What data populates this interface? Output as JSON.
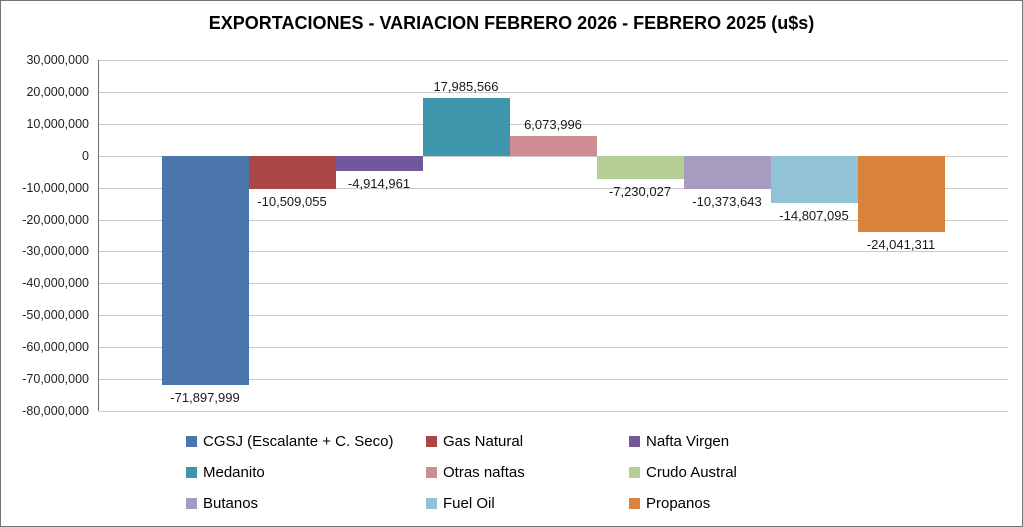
{
  "chart_data": {
    "type": "bar",
    "title": "EXPORTACIONES - VARIACION FEBRERO 2026 - FEBRERO 2025 (u$s)",
    "series": [
      {
        "name": "CGSJ (Escalante + C. Seco)",
        "value": -71897999,
        "label": "-71,897,999",
        "color": "#4A76AB"
      },
      {
        "name": "Gas Natural",
        "value": -10509055,
        "label": "-10,509,055",
        "color": "#AA4744"
      },
      {
        "name": "Nafta Virgen",
        "value": -4914961,
        "label": "-4,914,961",
        "color": "#72589B"
      },
      {
        "name": "Medanito",
        "value": 17985566,
        "label": "17,985,566",
        "color": "#3E96AC"
      },
      {
        "name": "Otras naftas",
        "value": 6073996,
        "label": "6,073,996",
        "color": "#CD8D92"
      },
      {
        "name": "Crudo Austral",
        "value": -7230027,
        "label": "-7,230,027",
        "color": "#B5CE95"
      },
      {
        "name": "Butanos",
        "value": -10373643,
        "label": "-10,373,643",
        "color": "#A89BC0"
      },
      {
        "name": "Fuel Oil",
        "value": -14807095,
        "label": "-14,807,095",
        "color": "#92C3D4"
      },
      {
        "name": "Propanos",
        "value": -24041311,
        "label": "-24,041,311",
        "color": "#D9833C"
      }
    ],
    "y_axis": {
      "min": -80000000,
      "max": 30000000,
      "step": 10000000,
      "tick_labels": [
        "30,000,000",
        "20,000,000",
        "10,000,000",
        "0",
        "-10,000,000",
        "-20,000,000",
        "-30,000,000",
        "-40,000,000",
        "-50,000,000",
        "-60,000,000",
        "-70,000,000",
        "-80,000,000"
      ]
    },
    "grid": true,
    "legend_position": "bottom",
    "legend_columns": 3,
    "xlabel": "",
    "ylabel": ""
  }
}
